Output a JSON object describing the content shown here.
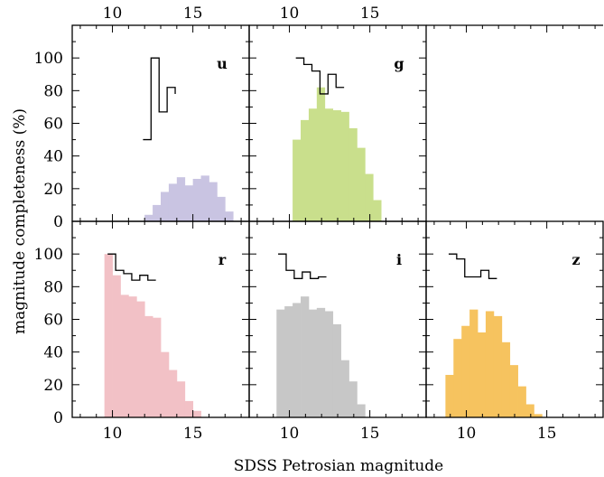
{
  "chart_data": {
    "type": "histogram-grid",
    "xlabel": "SDSS Petrosian magnitude",
    "ylabel": "magnitude completeness (%)",
    "xlim": [
      7.5,
      18.5
    ],
    "ylim": [
      0,
      120
    ],
    "xticks_major": [
      10,
      15
    ],
    "yticks_major": [
      0,
      20,
      40,
      60,
      80,
      100
    ],
    "panels": [
      {
        "band": "u",
        "bin_edges": [
          12.0,
          12.5,
          13.0,
          13.5,
          14.0,
          14.5,
          15.0,
          15.5,
          16.0,
          16.5,
          17.0,
          17.5
        ],
        "counts": [
          4,
          10,
          18,
          23,
          27,
          22,
          26,
          28,
          24,
          15,
          6
        ],
        "color": "#c9c4e2",
        "completeness_edges": [
          11.9,
          12.4,
          12.9,
          13.4,
          13.9
        ],
        "completeness": [
          50,
          100,
          67,
          82,
          78
        ]
      },
      {
        "band": "g",
        "bin_edges": [
          10.2,
          10.7,
          11.2,
          11.7,
          12.2,
          12.7,
          13.2,
          13.7,
          14.2,
          14.7,
          15.2,
          15.7
        ],
        "counts": [
          50,
          62,
          69,
          82,
          69,
          68,
          67,
          57,
          45,
          29,
          13
        ],
        "color": "#c9df8c",
        "completeness_edges": [
          10.4,
          10.9,
          11.4,
          11.9,
          12.4,
          12.9,
          13.4
        ],
        "completeness": [
          100,
          96,
          92,
          78,
          90,
          82
        ]
      },
      {
        "band": "r",
        "bin_edges": [
          9.5,
          10.0,
          10.5,
          11.0,
          11.5,
          12.0,
          12.5,
          13.0,
          13.5,
          14.0,
          14.5,
          15.0,
          15.5
        ],
        "counts": [
          100,
          87,
          75,
          74,
          71,
          62,
          61,
          40,
          29,
          22,
          10,
          4
        ],
        "color": "#f2c1c6",
        "completeness_edges": [
          9.7,
          10.2,
          10.7,
          11.2,
          11.7,
          12.2,
          12.7
        ],
        "completeness": [
          100,
          90,
          88,
          84,
          87,
          84
        ]
      },
      {
        "band": "i",
        "bin_edges": [
          9.2,
          9.7,
          10.2,
          10.7,
          11.2,
          11.7,
          12.2,
          12.7,
          13.2,
          13.7,
          14.2,
          14.7
        ],
        "counts": [
          66,
          68,
          70,
          74,
          66,
          67,
          65,
          57,
          35,
          22,
          8
        ],
        "color": "#c7c7c7",
        "completeness_edges": [
          9.3,
          9.8,
          10.3,
          10.8,
          11.3,
          11.8,
          12.3
        ],
        "completeness": [
          100,
          90,
          85,
          89,
          85,
          86
        ]
      },
      {
        "band": "z",
        "bin_edges": [
          8.7,
          9.2,
          9.7,
          10.2,
          10.7,
          11.2,
          11.7,
          12.2,
          12.7,
          13.2,
          13.7,
          14.2,
          14.7
        ],
        "counts": [
          26,
          48,
          56,
          66,
          52,
          65,
          62,
          46,
          32,
          19,
          8,
          2
        ],
        "color": "#f6c35f",
        "completeness_edges": [
          8.9,
          9.4,
          9.9,
          10.4,
          10.9,
          11.4,
          11.9
        ],
        "completeness": [
          100,
          97,
          86,
          86,
          90,
          85
        ]
      }
    ]
  }
}
